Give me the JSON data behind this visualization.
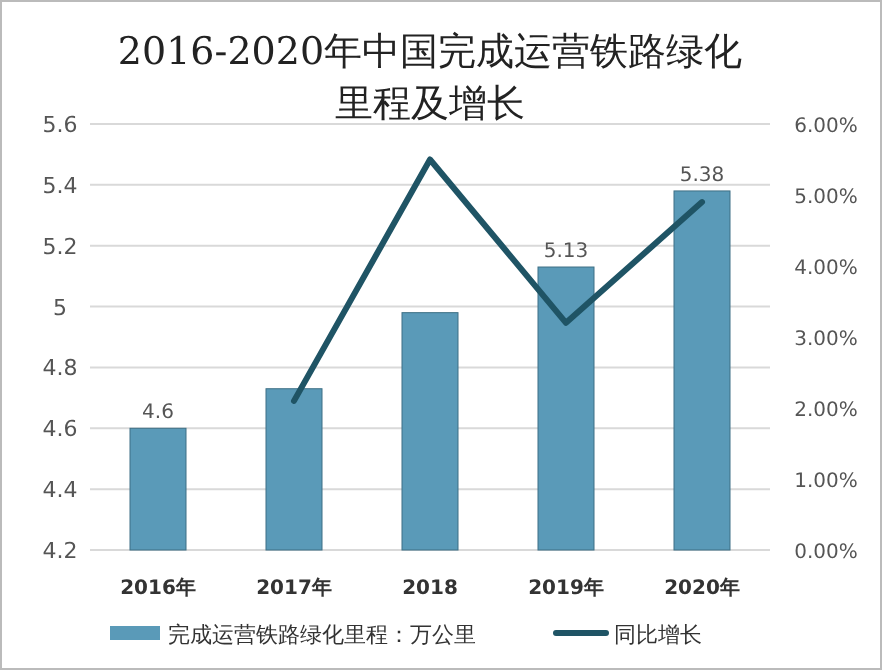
{
  "chart_data": {
    "type": "bar",
    "title": "2016-2020年中国完成运营铁路绿化里程及增长",
    "categories": [
      "2016年",
      "2017年",
      "2018",
      "2019年",
      "2020年"
    ],
    "series": [
      {
        "name": "完成运营铁路绿化里程：万公里",
        "color": "#5a9ab8",
        "values": [
          4.6,
          4.73,
          4.98,
          5.13,
          5.38
        ],
        "value_labels": [
          "4.6",
          null,
          null,
          "5.13",
          "5.38"
        ]
      },
      {
        "name": "同比增长",
        "type": "line",
        "axis": "y2",
        "color": "#1f5465",
        "values": [
          null,
          2.1,
          5.5,
          3.2,
          4.9
        ]
      }
    ],
    "ylim": [
      4.2,
      5.6
    ],
    "yticks": [
      4.2,
      4.4,
      4.6,
      4.8,
      5,
      5.2,
      5.4,
      5.6
    ],
    "y2lim": [
      0,
      6
    ],
    "y2ticks": [
      {
        "value": 0,
        "label": "0.00%"
      },
      {
        "value": 1,
        "label": "1.00%"
      },
      {
        "value": 2,
        "label": "2.00%"
      },
      {
        "value": 3,
        "label": "3.00%"
      },
      {
        "value": 4,
        "label": "4.00%"
      },
      {
        "value": 5,
        "label": "5.00%"
      },
      {
        "value": 6,
        "label": "6.00%"
      }
    ],
    "grid": "y",
    "legend": "bottom"
  }
}
